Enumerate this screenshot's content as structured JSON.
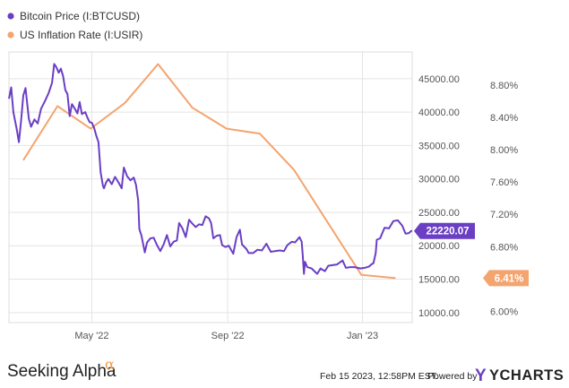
{
  "chart_data": {
    "type": "line",
    "legend": [
      {
        "name": "Bitcoin Price (I:BTCUSD)",
        "color": "#6a3fc4"
      },
      {
        "name": "US Inflation Rate (I:USIR)",
        "color": "#f4a46e"
      }
    ],
    "legend_position": "top-left",
    "grid": true,
    "x_axis": {
      "ticks": [
        "May '22",
        "Sep '22",
        "Jan '23"
      ],
      "range": [
        "2022-02-15",
        "2023-02-15"
      ]
    },
    "y_axis_left": {
      "ticks": [
        "10000.00",
        "15000.00",
        "20000.00",
        "25000.00",
        "30000.00",
        "35000.00",
        "40000.00",
        "45000.00"
      ],
      "range": [
        8500,
        49000
      ]
    },
    "y_axis_right": {
      "ticks": [
        "6.00%",
        "6.40%",
        "6.80%",
        "7.20%",
        "7.60%",
        "8.00%",
        "8.40%",
        "8.80%"
      ],
      "range": [
        5.86,
        9.21
      ]
    },
    "series": [
      {
        "name": "Bitcoin Price (I:BTCUSD)",
        "axis": "left",
        "color": "#6a3fc4",
        "last_label": "22220.07",
        "points": [
          [
            "2022-02-15",
            42000
          ],
          [
            "2022-02-17",
            43700
          ],
          [
            "2022-02-19",
            40000
          ],
          [
            "2022-02-22",
            37500
          ],
          [
            "2022-02-24",
            35500
          ],
          [
            "2022-02-26",
            38800
          ],
          [
            "2022-02-28",
            42500
          ],
          [
            "2022-03-02",
            43600
          ],
          [
            "2022-03-05",
            39000
          ],
          [
            "2022-03-07",
            37800
          ],
          [
            "2022-03-10",
            38900
          ],
          [
            "2022-03-13",
            38300
          ],
          [
            "2022-03-16",
            40500
          ],
          [
            "2022-03-20",
            41800
          ],
          [
            "2022-03-23",
            42900
          ],
          [
            "2022-03-26",
            44400
          ],
          [
            "2022-03-28",
            47200
          ],
          [
            "2022-03-30",
            46700
          ],
          [
            "2022-04-01",
            45900
          ],
          [
            "2022-04-03",
            46500
          ],
          [
            "2022-04-05",
            45400
          ],
          [
            "2022-04-07",
            43300
          ],
          [
            "2022-04-09",
            42700
          ],
          [
            "2022-04-11",
            39400
          ],
          [
            "2022-04-13",
            41200
          ],
          [
            "2022-04-16",
            40400
          ],
          [
            "2022-04-18",
            39800
          ],
          [
            "2022-04-20",
            41500
          ],
          [
            "2022-04-22",
            39700
          ],
          [
            "2022-04-25",
            40000
          ],
          [
            "2022-04-27",
            39200
          ],
          [
            "2022-04-29",
            38500
          ],
          [
            "2022-05-01",
            38400
          ],
          [
            "2022-05-03",
            37700
          ],
          [
            "2022-05-05",
            36500
          ],
          [
            "2022-05-07",
            35500
          ],
          [
            "2022-05-09",
            31000
          ],
          [
            "2022-05-11",
            29000
          ],
          [
            "2022-05-12",
            28600
          ],
          [
            "2022-05-14",
            29500
          ],
          [
            "2022-05-16",
            30000
          ],
          [
            "2022-05-19",
            29200
          ],
          [
            "2022-05-22",
            30300
          ],
          [
            "2022-05-25",
            29500
          ],
          [
            "2022-05-28",
            28600
          ],
          [
            "2022-05-30",
            31700
          ],
          [
            "2022-06-02",
            30400
          ],
          [
            "2022-06-05",
            29800
          ],
          [
            "2022-06-08",
            30200
          ],
          [
            "2022-06-10",
            29100
          ],
          [
            "2022-06-12",
            26800
          ],
          [
            "2022-06-13",
            22500
          ],
          [
            "2022-06-15",
            21500
          ],
          [
            "2022-06-18",
            19000
          ],
          [
            "2022-06-20",
            20500
          ],
          [
            "2022-06-23",
            21100
          ],
          [
            "2022-06-26",
            21200
          ],
          [
            "2022-06-29",
            20100
          ],
          [
            "2022-07-02",
            19200
          ],
          [
            "2022-07-05",
            20200
          ],
          [
            "2022-07-08",
            21600
          ],
          [
            "2022-07-11",
            19900
          ],
          [
            "2022-07-14",
            20600
          ],
          [
            "2022-07-17",
            20800
          ],
          [
            "2022-07-19",
            23400
          ],
          [
            "2022-07-22",
            22600
          ],
          [
            "2022-07-25",
            21300
          ],
          [
            "2022-07-28",
            23900
          ],
          [
            "2022-07-31",
            23300
          ],
          [
            "2022-08-03",
            22800
          ],
          [
            "2022-08-06",
            23200
          ],
          [
            "2022-08-09",
            23100
          ],
          [
            "2022-08-12",
            24400
          ],
          [
            "2022-08-15",
            24100
          ],
          [
            "2022-08-17",
            23400
          ],
          [
            "2022-08-19",
            21100
          ],
          [
            "2022-08-22",
            21500
          ],
          [
            "2022-08-25",
            21600
          ],
          [
            "2022-08-27",
            20100
          ],
          [
            "2022-08-30",
            19800
          ],
          [
            "2022-09-02",
            20000
          ],
          [
            "2022-09-06",
            18800
          ],
          [
            "2022-09-09",
            21300
          ],
          [
            "2022-09-12",
            22400
          ],
          [
            "2022-09-14",
            20200
          ],
          [
            "2022-09-18",
            19500
          ],
          [
            "2022-09-20",
            18900
          ],
          [
            "2022-09-24",
            18900
          ],
          [
            "2022-09-28",
            19400
          ],
          [
            "2022-10-02",
            19300
          ],
          [
            "2022-10-06",
            20300
          ],
          [
            "2022-10-10",
            19100
          ],
          [
            "2022-10-14",
            19200
          ],
          [
            "2022-10-18",
            19300
          ],
          [
            "2022-10-22",
            19200
          ],
          [
            "2022-10-25",
            20100
          ],
          [
            "2022-10-29",
            20600
          ],
          [
            "2022-11-01",
            20500
          ],
          [
            "2022-11-05",
            21300
          ],
          [
            "2022-11-07",
            20600
          ],
          [
            "2022-11-08",
            18500
          ],
          [
            "2022-11-09",
            15800
          ],
          [
            "2022-11-10",
            17600
          ],
          [
            "2022-11-12",
            16800
          ],
          [
            "2022-11-16",
            16600
          ],
          [
            "2022-11-21",
            15800
          ],
          [
            "2022-11-24",
            16600
          ],
          [
            "2022-11-28",
            16200
          ],
          [
            "2022-12-01",
            17000
          ],
          [
            "2022-12-05",
            17100
          ],
          [
            "2022-12-09",
            17200
          ],
          [
            "2022-12-14",
            17800
          ],
          [
            "2022-12-17",
            16700
          ],
          [
            "2022-12-21",
            16800
          ],
          [
            "2022-12-25",
            16800
          ],
          [
            "2022-12-30",
            16600
          ],
          [
            "2023-01-03",
            16700
          ],
          [
            "2023-01-07",
            16900
          ],
          [
            "2023-01-09",
            17200
          ],
          [
            "2023-01-11",
            17400
          ],
          [
            "2023-01-13",
            18900
          ],
          [
            "2023-01-14",
            20900
          ],
          [
            "2023-01-17",
            21100
          ],
          [
            "2023-01-21",
            22700
          ],
          [
            "2023-01-25",
            22600
          ],
          [
            "2023-01-29",
            23700
          ],
          [
            "2023-02-02",
            23800
          ],
          [
            "2023-02-06",
            23000
          ],
          [
            "2023-02-09",
            21800
          ],
          [
            "2023-02-12",
            21900
          ],
          [
            "2023-02-14",
            22200
          ],
          [
            "2023-02-15",
            22220.07
          ]
        ]
      },
      {
        "name": "US Inflation Rate (I:USIR)",
        "axis": "right",
        "color": "#f4a46e",
        "last_label": "6.41%",
        "points": [
          [
            "2022-02-28",
            7.87
          ],
          [
            "2022-03-31",
            8.54
          ],
          [
            "2022-04-30",
            8.26
          ],
          [
            "2022-05-31",
            8.58
          ],
          [
            "2022-06-30",
            9.06
          ],
          [
            "2022-07-31",
            8.52
          ],
          [
            "2022-08-31",
            8.26
          ],
          [
            "2022-09-30",
            8.2
          ],
          [
            "2022-10-31",
            7.75
          ],
          [
            "2022-11-30",
            7.11
          ],
          [
            "2022-12-31",
            6.45
          ],
          [
            "2023-01-31",
            6.41
          ]
        ]
      }
    ]
  },
  "footer": {
    "brand": "Seeking Alpha",
    "brand_mark": "α",
    "timestamp": "Feb 15 2023, 12:58PM EST.",
    "powered_by": "Powered by",
    "provider": "YCHARTS",
    "provider_mark": "Y"
  }
}
